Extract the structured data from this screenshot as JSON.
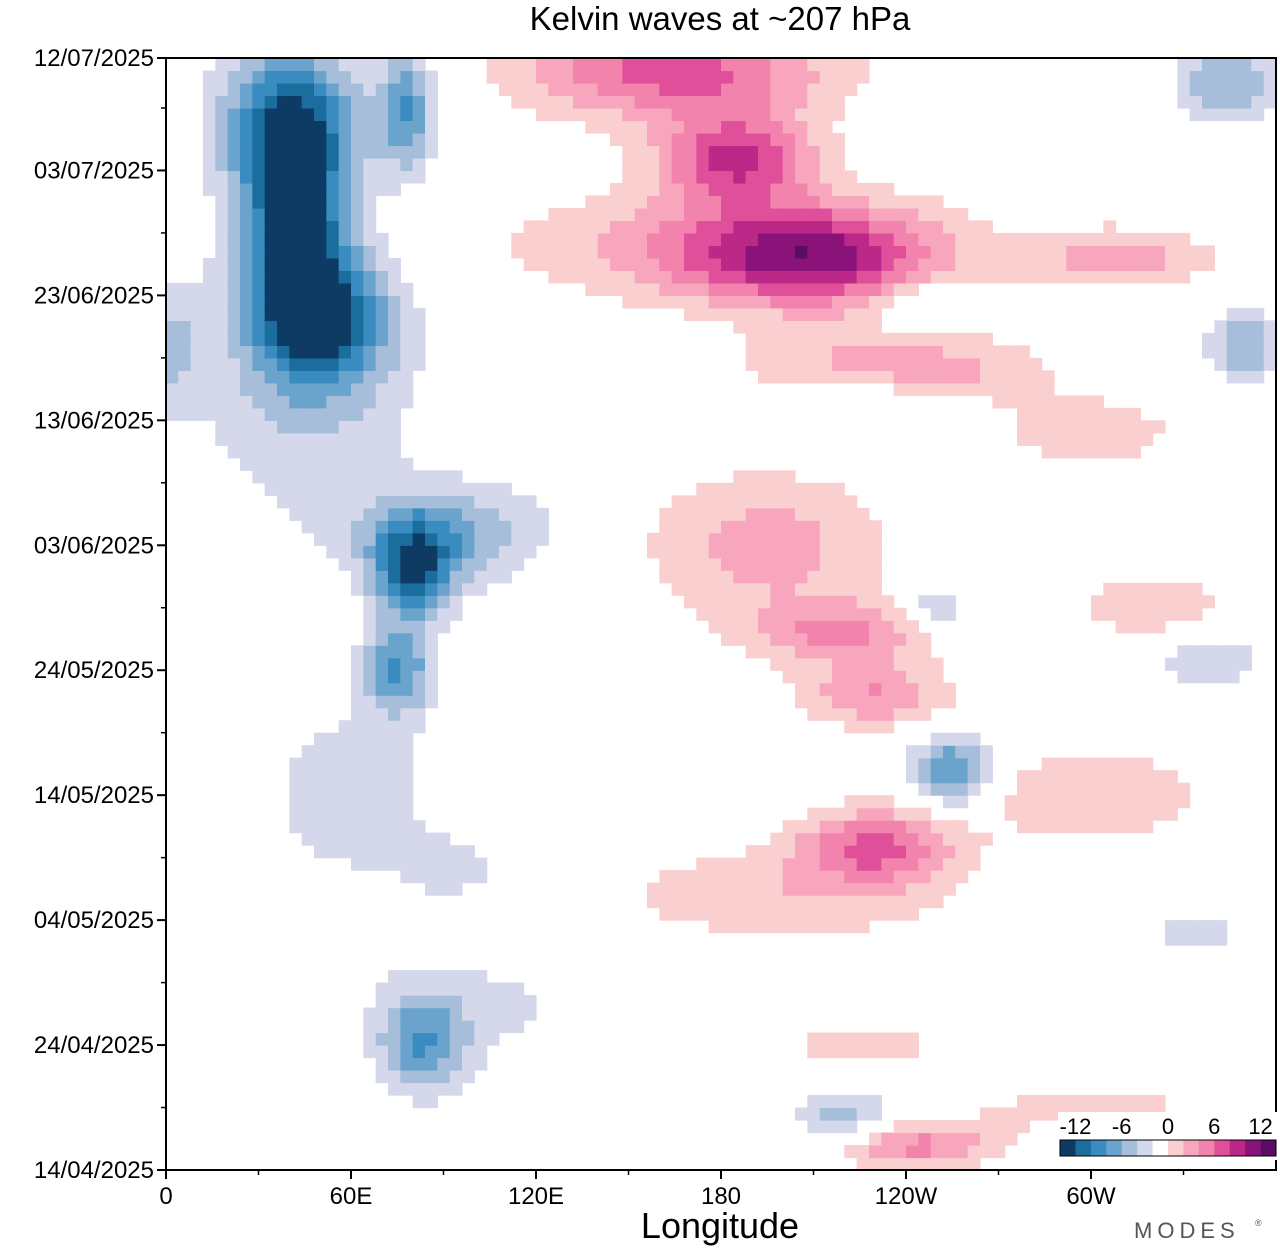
{
  "chart_data": {
    "type": "heatmap",
    "title": "Kelvin waves at ~207 hPa",
    "xlabel": "Longitude",
    "ylabel": "",
    "x_ticks": [
      {
        "lon": 0,
        "label": "0"
      },
      {
        "lon": 60,
        "label": "60E"
      },
      {
        "lon": 120,
        "label": "120E"
      },
      {
        "lon": 180,
        "label": "180"
      },
      {
        "lon": 240,
        "label": "120W"
      },
      {
        "lon": 300,
        "label": "60W"
      }
    ],
    "x_minor_ticks": [
      30,
      90,
      150,
      210,
      270,
      330
    ],
    "xlim": [
      0,
      360
    ],
    "y_ticks": [
      "14/04/2025",
      "24/04/2025",
      "04/05/2025",
      "14/05/2025",
      "24/05/2025",
      "03/06/2025",
      "13/06/2025",
      "23/06/2025",
      "03/07/2025",
      "12/07/2025"
    ],
    "y_tick_days": [
      0,
      10,
      20,
      30,
      40,
      50,
      60,
      70,
      80,
      89
    ],
    "ylim": [
      "14/04/2025",
      "12/07/2025"
    ],
    "colorbar": {
      "labels": [
        "-12",
        "-6",
        "0",
        "6",
        "12"
      ],
      "label_values": [
        -12,
        -6,
        0,
        6,
        12
      ],
      "levels": [
        -14,
        -12,
        -10,
        -8,
        -6,
        -4,
        -2,
        2,
        4,
        6,
        8,
        10,
        12,
        14
      ],
      "colors": [
        "#0d3b63",
        "#1b6d9e",
        "#3a8bbf",
        "#6aa3cc",
        "#a7bedb",
        "#d4d8ea",
        "#ffffff",
        "#f9cfcf",
        "#f7a6bd",
        "#f183ad",
        "#e0509a",
        "#bb2887",
        "#8a137a",
        "#5b0d63"
      ]
    },
    "anomalies": [
      {
        "lon": 40,
        "day": 84,
        "dlon": 22,
        "dday": 6,
        "amp": -11
      },
      {
        "lon": 42,
        "day": 75,
        "dlon": 18,
        "dday": 8,
        "amp": -12
      },
      {
        "lon": 52,
        "day": 68,
        "dlon": 22,
        "dday": 5,
        "amp": -9
      },
      {
        "lon": 78,
        "day": 85,
        "dlon": 9,
        "dday": 5,
        "amp": -8
      },
      {
        "lon": 45,
        "day": 62,
        "dlon": 35,
        "dday": 10,
        "amp": -4
      },
      {
        "lon": 80,
        "day": 48,
        "dlon": 13,
        "dday": 4,
        "amp": -10
      },
      {
        "lon": 92,
        "day": 51,
        "dlon": 32,
        "dday": 4,
        "amp": -6
      },
      {
        "lon": 75,
        "day": 40,
        "dlon": 12,
        "dday": 3.5,
        "amp": -8
      },
      {
        "lon": 60,
        "day": 30,
        "dlon": 28,
        "dday": 7,
        "amp": -3.5
      },
      {
        "lon": 83,
        "day": 10,
        "dlon": 14,
        "dday": 4,
        "amp": -7
      },
      {
        "lon": 100,
        "day": 13,
        "dlon": 40,
        "dday": 5,
        "amp": -2.5
      },
      {
        "lon": 95,
        "day": 24,
        "dlon": 20,
        "dday": 3,
        "amp": -2.5
      },
      {
        "lon": 255,
        "day": 32,
        "dlon": 13,
        "dday": 3,
        "amp": -9
      },
      {
        "lon": 250,
        "day": 45,
        "dlon": 10,
        "dday": 2,
        "amp": -5
      },
      {
        "lon": 227,
        "day": 62,
        "dlon": 30,
        "dday": 3,
        "amp": -4
      },
      {
        "lon": 245,
        "day": 69,
        "dlon": 14,
        "dday": 2.5,
        "amp": -3.5
      },
      {
        "lon": 220,
        "day": 4,
        "dlon": 16,
        "dday": 2.5,
        "amp": -6
      },
      {
        "lon": 345,
        "day": 87,
        "dlon": 18,
        "dday": 3,
        "amp": -6
      },
      {
        "lon": 350,
        "day": 66,
        "dlon": 12,
        "dday": 3,
        "amp": -6
      },
      {
        "lon": 338,
        "day": 41,
        "dlon": 18,
        "dday": 2.5,
        "amp": -4
      },
      {
        "lon": 335,
        "day": 19,
        "dlon": 18,
        "dday": 2,
        "amp": -3
      },
      {
        "lon": 2,
        "day": 66,
        "dlon": 10,
        "dday": 5,
        "amp": -4
      },
      {
        "lon": 165,
        "day": 88,
        "dlon": 50,
        "dday": 4,
        "amp": 9
      },
      {
        "lon": 185,
        "day": 81,
        "dlon": 25,
        "dday": 3.5,
        "amp": 10
      },
      {
        "lon": 210,
        "day": 73,
        "dlon": 40,
        "dday": 4,
        "amp": 10
      },
      {
        "lon": 180,
        "day": 74,
        "dlon": 70,
        "dday": 4.5,
        "amp": 5
      },
      {
        "lon": 235,
        "day": 64,
        "dlon": 45,
        "dday": 3,
        "amp": 7
      },
      {
        "lon": 195,
        "day": 50,
        "dlon": 40,
        "dday": 6,
        "amp": 5
      },
      {
        "lon": 220,
        "day": 43,
        "dlon": 30,
        "dday": 2.5,
        "amp": 6
      },
      {
        "lon": 230,
        "day": 38,
        "dlon": 25,
        "dday": 2.5,
        "amp": 6
      },
      {
        "lon": 230,
        "day": 26,
        "dlon": 25,
        "dday": 3,
        "amp": 8
      },
      {
        "lon": 200,
        "day": 22,
        "dlon": 60,
        "dday": 4,
        "amp": 3.5
      },
      {
        "lon": 300,
        "day": 30,
        "dlon": 45,
        "dday": 4,
        "amp": 3.5
      },
      {
        "lon": 320,
        "day": 45,
        "dlon": 25,
        "dday": 2.5,
        "amp": 4
      },
      {
        "lon": 300,
        "day": 59,
        "dlon": 30,
        "dday": 3,
        "amp": 3.5
      },
      {
        "lon": 310,
        "day": 73,
        "dlon": 30,
        "dday": 2.5,
        "amp": 5
      },
      {
        "lon": 240,
        "day": 2,
        "dlon": 30,
        "dday": 2,
        "amp": 7
      },
      {
        "lon": 300,
        "day": 5,
        "dlon": 40,
        "dday": 2,
        "amp": 3
      },
      {
        "lon": 225,
        "day": 10,
        "dlon": 30,
        "dday": 2,
        "amp": 3
      }
    ]
  }
}
